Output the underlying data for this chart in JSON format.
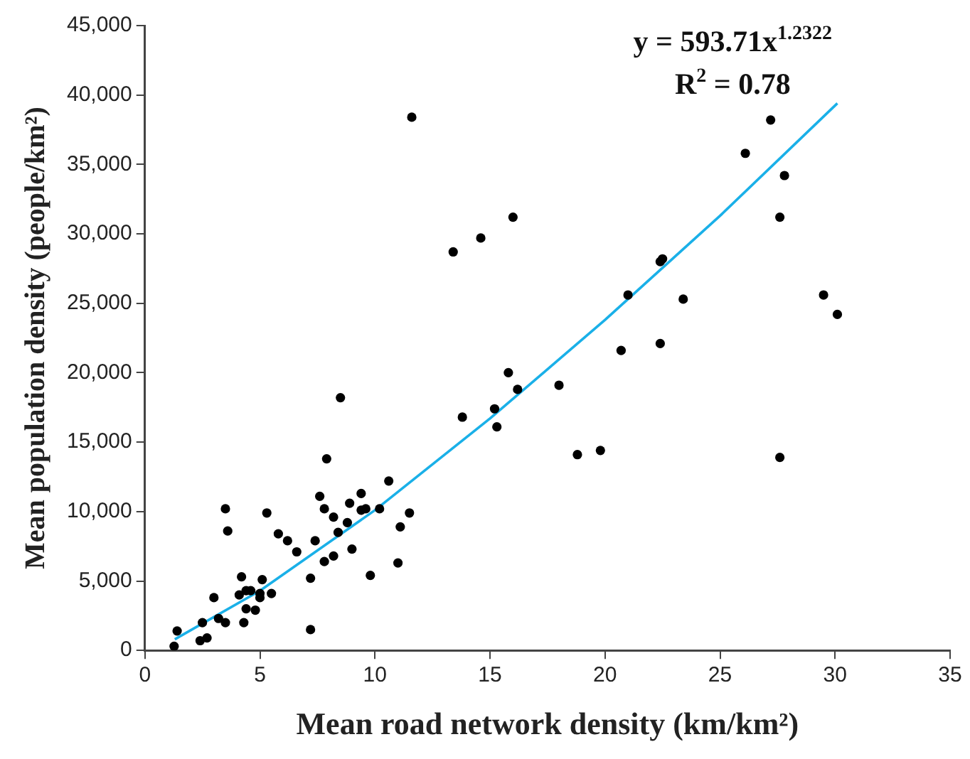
{
  "chart_data": {
    "type": "scatter",
    "xlabel": "Mean road network density (km/km²)",
    "ylabel": "Mean population density (people/km²)",
    "annotations": [
      "y = 593.71x$^{1.2322}$",
      "R$^{2}$ = 0.78"
    ],
    "xlim": [
      0,
      35
    ],
    "xticks": [
      0,
      5,
      10,
      15,
      20,
      25,
      30,
      35
    ],
    "ylim": [
      0,
      45000
    ],
    "yticks": [
      0,
      {
        "value": 5000,
        "label": "5,000"
      },
      {
        "value": 10000,
        "label": "10,000"
      },
      {
        "value": 15000,
        "label": "15,000"
      },
      {
        "value": 20000,
        "label": "20,000"
      },
      {
        "value": 25000,
        "label": "25,000"
      },
      {
        "value": 30000,
        "label": "30,000"
      },
      {
        "value": 35000,
        "label": "35,000"
      },
      {
        "value": 40000,
        "label": "40,000"
      },
      {
        "value": 45000,
        "label": "45,000"
      }
    ],
    "grid": false,
    "legend": false,
    "marker": "circle",
    "series": [
      {
        "color": "#000000",
        "x": [
          1.27,
          1.4,
          2.4,
          2.7,
          2.5,
          3.0,
          3.2,
          3.5,
          3.6,
          3.5,
          4.3,
          4.2,
          4.1,
          4.4,
          4.4,
          4.6,
          4.8,
          5.0,
          5.1,
          5.0,
          5.5,
          5.3,
          5.8,
          6.2,
          6.6,
          7.2,
          7.2,
          7.4,
          7.6,
          7.8,
          7.8,
          8.2,
          8.2,
          8.4,
          8.8,
          8.9,
          9.0,
          9.4,
          9.4,
          9.6,
          9.8,
          10.2,
          10.6,
          11.0,
          11.1,
          11.5,
          7.9,
          8.5,
          11.6,
          13.4,
          13.8,
          14.6,
          15.2,
          15.3,
          15.8,
          16.0,
          16.2,
          18.0,
          18.8,
          19.8,
          20.7,
          21.0,
          22.4,
          22.4,
          22.5,
          23.4,
          26.1,
          27.2,
          27.6,
          27.6,
          27.8,
          29.5,
          30.1
        ],
        "values": [
          300,
          1400,
          700,
          900,
          2000,
          3800,
          2300,
          2000,
          8600,
          10200,
          2000,
          5300,
          4000,
          4300,
          3000,
          4300,
          2900,
          3800,
          5100,
          4100,
          4100,
          9900,
          8400,
          7900,
          7100,
          5200,
          1500,
          7900,
          11100,
          10200,
          6400,
          6800,
          9600,
          8500,
          9200,
          10600,
          7300,
          11300,
          10100,
          10200,
          5400,
          10200,
          12200,
          6300,
          8900,
          9900,
          13800,
          18200,
          38400,
          28700,
          16800,
          29700,
          17400,
          16100,
          20000,
          31200,
          18800,
          19100,
          14100,
          14400,
          21600,
          25600,
          22100,
          28000,
          28200,
          25300,
          35800,
          38200,
          31200,
          13900,
          34200,
          25600,
          24200
        ]
      },
      {
        "type": "line",
        "color": "#1ab0e8",
        "marker": "none",
        "line_style": "solid",
        "x": [
          1.3,
          5,
          10,
          15,
          20,
          25,
          30.1
        ],
        "values": [
          800,
          4300,
          10100,
          16700,
          23800,
          31300,
          39400
        ]
      }
    ]
  }
}
